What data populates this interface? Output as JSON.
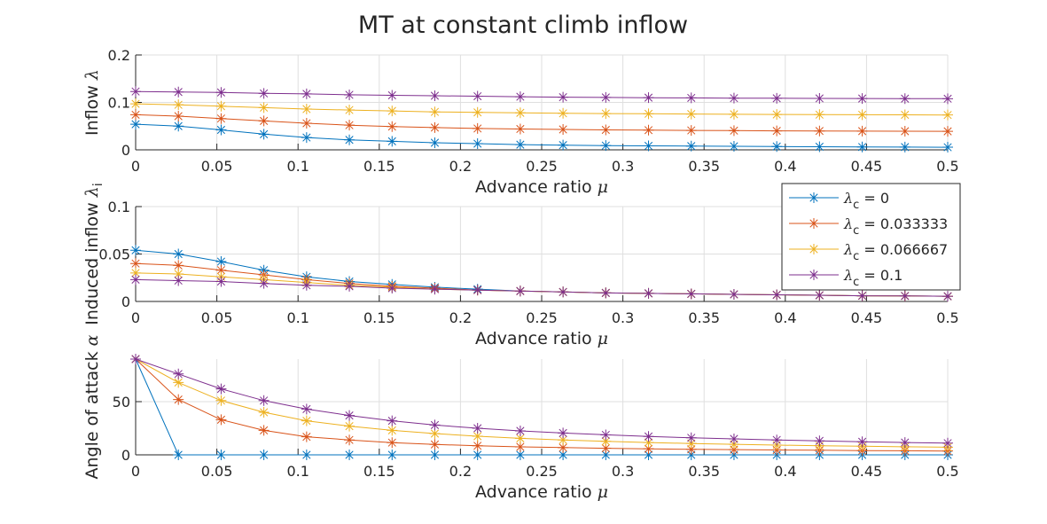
{
  "figure": {
    "title": "MT at constant climb inflow"
  },
  "legend": {
    "placement": "overlapping-middle-subplot-right",
    "entries": [
      {
        "symbol": "λ",
        "sub": "c",
        "text": " = 0",
        "color": "#0072BD"
      },
      {
        "symbol": "λ",
        "sub": "c",
        "text": " = 0.033333",
        "color": "#D95319"
      },
      {
        "symbol": "λ",
        "sub": "c",
        "text": " = 0.066667",
        "color": "#EDB120"
      },
      {
        "symbol": "λ",
        "sub": "c",
        "text": " = 0.1",
        "color": "#7E2F8E"
      }
    ]
  },
  "chart_data": [
    {
      "type": "line",
      "marker": "asterisk",
      "xlabel": {
        "text": "Advance ratio ",
        "symbol": "μ"
      },
      "ylabel": {
        "text": "Inflow ",
        "symbol": "λ",
        "sub": ""
      },
      "xlim": [
        0,
        0.5
      ],
      "ylim": [
        0,
        0.2
      ],
      "xticks": [
        0,
        0.05,
        0.1,
        0.15,
        0.2,
        0.25,
        0.3,
        0.35,
        0.4,
        0.45,
        0.5
      ],
      "xtick_labels": [
        "0",
        "0.05",
        "0.1",
        "0.15",
        "0.2",
        "0.25",
        "0.3",
        "0.35",
        "0.4",
        "0.45",
        "0.5"
      ],
      "yticks": [
        0,
        0.1,
        0.2
      ],
      "ytick_labels": [
        "0",
        "0.1",
        "0.2"
      ],
      "grid": true,
      "x": [
        0,
        0.026316,
        0.052632,
        0.078947,
        0.105263,
        0.131579,
        0.157895,
        0.184211,
        0.210526,
        0.236842,
        0.263158,
        0.289474,
        0.315789,
        0.342105,
        0.368421,
        0.394737,
        0.421053,
        0.447368,
        0.473684,
        0.5
      ],
      "series": [
        {
          "color": "#0072BD",
          "values": [
            0.054,
            0.05,
            0.042,
            0.033,
            0.026,
            0.021,
            0.018,
            0.015,
            0.013,
            0.011,
            0.01,
            0.009,
            0.0085,
            0.008,
            0.0075,
            0.007,
            0.0065,
            0.006,
            0.0058,
            0.0055
          ]
        },
        {
          "color": "#D95319",
          "values": [
            0.074,
            0.071,
            0.066,
            0.061,
            0.056,
            0.052,
            0.049,
            0.047,
            0.045,
            0.044,
            0.043,
            0.042,
            0.0415,
            0.041,
            0.0405,
            0.04,
            0.0398,
            0.0395,
            0.0393,
            0.039
          ]
        },
        {
          "color": "#EDB120",
          "values": [
            0.097,
            0.095,
            0.092,
            0.089,
            0.086,
            0.084,
            0.082,
            0.08,
            0.079,
            0.078,
            0.077,
            0.0765,
            0.076,
            0.0755,
            0.075,
            0.0745,
            0.0742,
            0.074,
            0.0738,
            0.0735
          ]
        },
        {
          "color": "#7E2F8E",
          "values": [
            0.123,
            0.122,
            0.121,
            0.119,
            0.118,
            0.116,
            0.115,
            0.114,
            0.113,
            0.112,
            0.111,
            0.1105,
            0.11,
            0.1095,
            0.109,
            0.1087,
            0.1085,
            0.1082,
            0.108,
            0.1078
          ]
        }
      ]
    },
    {
      "type": "line",
      "marker": "asterisk",
      "xlabel": {
        "text": "Advance ratio ",
        "symbol": "μ"
      },
      "ylabel": {
        "text": "Induced inflow ",
        "symbol": "λ",
        "sub": "i"
      },
      "xlim": [
        0,
        0.5
      ],
      "ylim": [
        0,
        0.1
      ],
      "xticks": [
        0,
        0.05,
        0.1,
        0.15,
        0.2,
        0.25,
        0.3,
        0.35,
        0.4,
        0.45,
        0.5
      ],
      "xtick_labels": [
        "0",
        "0.05",
        "0.1",
        "0.15",
        "0.2",
        "0.25",
        "0.3",
        "0.35",
        "0.4",
        "0.45",
        "0.5"
      ],
      "yticks": [
        0,
        0.05,
        0.1
      ],
      "ytick_labels": [
        "0",
        "0.05",
        "0.1"
      ],
      "grid": true,
      "x": [
        0,
        0.026316,
        0.052632,
        0.078947,
        0.105263,
        0.131579,
        0.157895,
        0.184211,
        0.210526,
        0.236842,
        0.263158,
        0.289474,
        0.315789,
        0.342105,
        0.368421,
        0.394737,
        0.421053,
        0.447368,
        0.473684,
        0.5
      ],
      "series": [
        {
          "color": "#0072BD",
          "values": [
            0.054,
            0.05,
            0.042,
            0.033,
            0.026,
            0.021,
            0.018,
            0.015,
            0.013,
            0.011,
            0.01,
            0.009,
            0.0085,
            0.008,
            0.0075,
            0.007,
            0.0065,
            0.006,
            0.0058,
            0.0055
          ]
        },
        {
          "color": "#D95319",
          "values": [
            0.04,
            0.038,
            0.033,
            0.028,
            0.023,
            0.019,
            0.016,
            0.014,
            0.012,
            0.011,
            0.01,
            0.009,
            0.0085,
            0.008,
            0.0075,
            0.007,
            0.0065,
            0.006,
            0.0058,
            0.0055
          ]
        },
        {
          "color": "#EDB120",
          "values": [
            0.03,
            0.029,
            0.026,
            0.023,
            0.02,
            0.017,
            0.015,
            0.013,
            0.012,
            0.011,
            0.01,
            0.009,
            0.0085,
            0.008,
            0.0075,
            0.007,
            0.0065,
            0.006,
            0.0058,
            0.0055
          ]
        },
        {
          "color": "#7E2F8E",
          "values": [
            0.023,
            0.022,
            0.021,
            0.019,
            0.017,
            0.016,
            0.014,
            0.013,
            0.012,
            0.011,
            0.01,
            0.009,
            0.0085,
            0.008,
            0.0075,
            0.007,
            0.0065,
            0.006,
            0.0058,
            0.0055
          ]
        }
      ]
    },
    {
      "type": "line",
      "marker": "asterisk",
      "xlabel": {
        "text": "Advance ratio ",
        "symbol": "μ"
      },
      "ylabel": {
        "text": "Angle of attack ",
        "symbol": "α",
        "sub": ""
      },
      "xlim": [
        0,
        0.5
      ],
      "ylim": [
        0,
        90
      ],
      "xticks": [
        0,
        0.05,
        0.1,
        0.15,
        0.2,
        0.25,
        0.3,
        0.35,
        0.4,
        0.45,
        0.5
      ],
      "xtick_labels": [
        "0",
        "0.05",
        "0.1",
        "0.15",
        "0.2",
        "0.25",
        "0.3",
        "0.35",
        "0.4",
        "0.45",
        "0.5"
      ],
      "yticks": [
        0,
        50
      ],
      "ytick_labels": [
        "0",
        "50"
      ],
      "grid": true,
      "x": [
        0,
        0.026316,
        0.052632,
        0.078947,
        0.105263,
        0.131579,
        0.157895,
        0.184211,
        0.210526,
        0.236842,
        0.263158,
        0.289474,
        0.315789,
        0.342105,
        0.368421,
        0.394737,
        0.421053,
        0.447368,
        0.473684,
        0.5
      ],
      "series": [
        {
          "color": "#0072BD",
          "values": [
            90,
            0,
            0,
            0,
            0,
            0,
            0,
            0,
            0,
            0,
            0,
            0,
            0,
            0,
            0,
            0,
            0,
            0,
            0,
            0
          ]
        },
        {
          "color": "#D95319",
          "values": [
            90,
            52,
            33,
            23,
            17,
            14,
            11.5,
            9.8,
            8.5,
            7.5,
            6.8,
            6.2,
            5.7,
            5.2,
            4.9,
            4.6,
            4.3,
            4.0,
            3.8,
            3.6
          ]
        },
        {
          "color": "#EDB120",
          "values": [
            90,
            68,
            51,
            40,
            32,
            27,
            23,
            20,
            17.5,
            15.5,
            14,
            12.7,
            11.6,
            10.7,
            9.9,
            9.2,
            8.6,
            8.1,
            7.6,
            7.2
          ]
        },
        {
          "color": "#7E2F8E",
          "values": [
            90,
            76,
            62,
            51,
            43,
            37,
            32,
            28,
            25,
            22.5,
            20.5,
            18.8,
            17.3,
            16,
            15,
            14,
            13.1,
            12.3,
            11.6,
            11
          ]
        }
      ]
    }
  ]
}
